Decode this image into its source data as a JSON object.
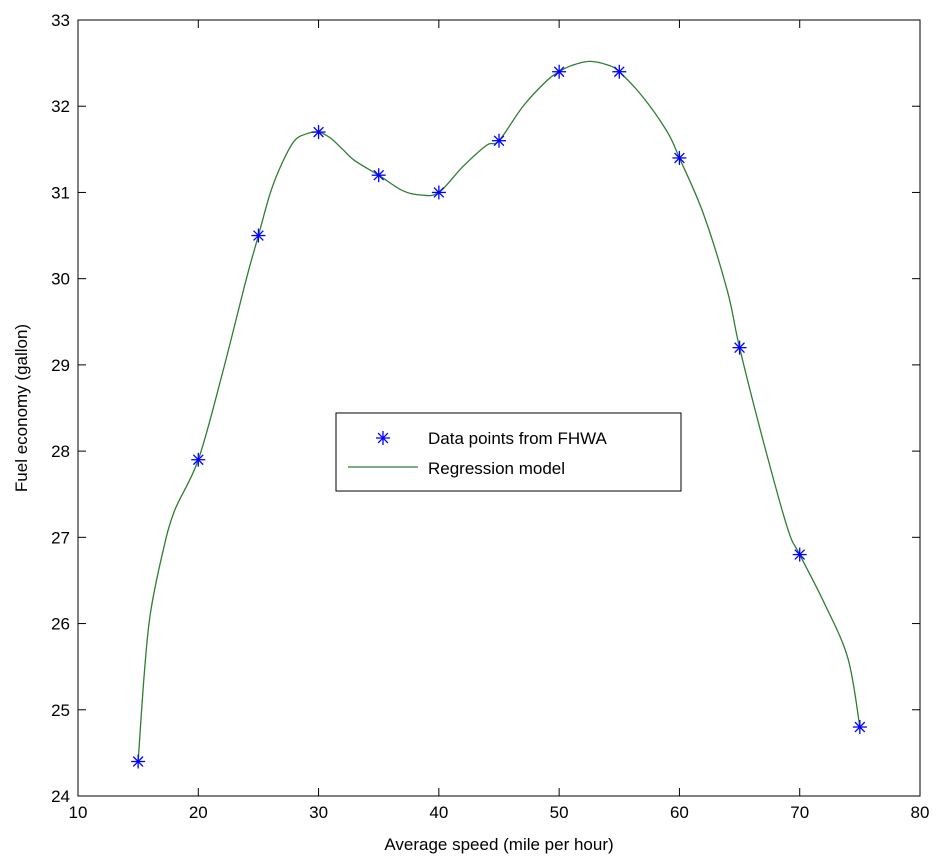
{
  "chart_data": {
    "type": "line",
    "title": "",
    "xlabel": "Average speed (mile per hour)",
    "ylabel": "Fuel economy (gallon)",
    "xlim": [
      10,
      80
    ],
    "ylim": [
      24,
      33
    ],
    "xticks": [
      10,
      20,
      30,
      40,
      50,
      60,
      70,
      80
    ],
    "yticks": [
      24,
      25,
      26,
      27,
      28,
      29,
      30,
      31,
      32,
      33
    ],
    "grid": false,
    "legend_position": "center",
    "series": [
      {
        "name": "Data points from FHWA",
        "style": "markers",
        "marker": "asterisk",
        "color": "#0000ff",
        "x": [
          15,
          20,
          25,
          30,
          35,
          40,
          45,
          50,
          55,
          60,
          65,
          70,
          75
        ],
        "y": [
          24.4,
          27.9,
          30.5,
          31.7,
          31.2,
          31.0,
          31.6,
          32.4,
          32.4,
          31.4,
          29.2,
          26.8,
          24.8
        ]
      },
      {
        "name": "Regression model",
        "style": "line",
        "color": "#2e7d32",
        "x": [
          15,
          15.5,
          16,
          17,
          18,
          20,
          22,
          24,
          25,
          26,
          27,
          28,
          29,
          30,
          31,
          32,
          33,
          35,
          37,
          38.5,
          40,
          42,
          44,
          45,
          47,
          49,
          50,
          51,
          52.5,
          54,
          55,
          57,
          59,
          60,
          62,
          64,
          65,
          67,
          69,
          70,
          72,
          74,
          75
        ],
        "y": [
          24.4,
          25.4,
          26.1,
          26.8,
          27.3,
          27.9,
          28.9,
          30.0,
          30.5,
          31.0,
          31.35,
          31.6,
          31.68,
          31.7,
          31.63,
          31.5,
          31.37,
          31.2,
          31.02,
          30.97,
          31.0,
          31.3,
          31.55,
          31.6,
          32.0,
          32.3,
          32.4,
          32.47,
          32.52,
          32.48,
          32.4,
          32.1,
          31.7,
          31.4,
          30.75,
          29.85,
          29.2,
          28.1,
          27.1,
          26.8,
          26.25,
          25.6,
          24.8
        ]
      }
    ]
  }
}
